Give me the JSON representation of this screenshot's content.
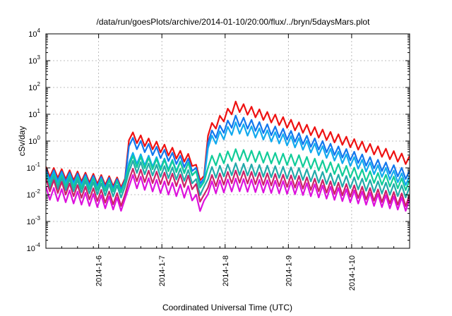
{
  "chart_data": {
    "type": "line",
    "title": "/data/run/goesPlots/archive/2014-01-10/20:00/flux/../bryn/5daysMars.plot",
    "xlabel": "Coordinated Universal Time (UTC)",
    "ylabel": "cSv/day",
    "yscale": "log",
    "ylim": [
      0.0001,
      10000
    ],
    "yticks": [
      {
        "base": "10",
        "exp": "-4"
      },
      {
        "base": "10",
        "exp": "-3"
      },
      {
        "base": "10",
        "exp": "-2"
      },
      {
        "base": "10",
        "exp": "-1"
      },
      {
        "base": "10",
        "exp": "0"
      },
      {
        "base": "10",
        "exp": "1"
      },
      {
        "base": "10",
        "exp": "2"
      },
      {
        "base": "10",
        "exp": "3"
      },
      {
        "base": "10",
        "exp": "4"
      }
    ],
    "xlim": [
      "2014-01-05T04:00",
      "2014-01-10T22:00"
    ],
    "xticks": [
      "2014-1-6",
      "2014-1-7",
      "2014-1-8",
      "2014-1-9",
      "2014-1-10"
    ],
    "grid": true,
    "legend": "none",
    "series": [
      {
        "color": "#ee1111",
        "profile": [
          [
            0,
            0.11
          ],
          [
            1.25,
            0.04
          ],
          [
            1.28,
            2.6
          ],
          [
            2.3,
            0.3
          ],
          [
            2.4,
            0.1
          ],
          [
            2.5,
            0.05
          ],
          [
            2.53,
            3.0
          ],
          [
            3.0,
            30
          ],
          [
            4.0,
            5
          ],
          [
            5.75,
            0.28
          ]
        ]
      },
      {
        "color": "#1177ee",
        "profile": [
          [
            0,
            0.09
          ],
          [
            1.25,
            0.035
          ],
          [
            1.28,
            1.6
          ],
          [
            2.3,
            0.2
          ],
          [
            2.4,
            0.08
          ],
          [
            2.5,
            0.04
          ],
          [
            2.53,
            1.8
          ],
          [
            3.0,
            9
          ],
          [
            4.0,
            2
          ],
          [
            5.75,
            0.08
          ]
        ]
      },
      {
        "color": "#11aaee",
        "profile": [
          [
            0,
            0.08
          ],
          [
            1.25,
            0.03
          ],
          [
            1.28,
            0.4
          ],
          [
            2.3,
            0.15
          ],
          [
            2.4,
            0.06
          ],
          [
            2.5,
            0.035
          ],
          [
            2.53,
            1.2
          ],
          [
            3.0,
            5
          ],
          [
            4.0,
            1.3
          ],
          [
            5.75,
            0.05
          ]
        ]
      },
      {
        "color": "#11cc99",
        "profile": [
          [
            0,
            0.06
          ],
          [
            1.25,
            0.03
          ],
          [
            1.28,
            0.3
          ],
          [
            2.3,
            0.15
          ],
          [
            2.4,
            0.06
          ],
          [
            2.5,
            0.03
          ],
          [
            2.53,
            0.25
          ],
          [
            3.0,
            0.5
          ],
          [
            4.0,
            0.3
          ],
          [
            5.75,
            0.035
          ]
        ]
      },
      {
        "color": "#22aaaa",
        "profile": [
          [
            0,
            0.05
          ],
          [
            1.25,
            0.02
          ],
          [
            1.28,
            0.2
          ],
          [
            2.3,
            0.08
          ],
          [
            2.4,
            0.03
          ],
          [
            2.5,
            0.02
          ],
          [
            2.53,
            0.1
          ],
          [
            3.0,
            0.15
          ],
          [
            4.0,
            0.1
          ],
          [
            5.75,
            0.02
          ]
        ]
      },
      {
        "color": "#cc2266",
        "profile": [
          [
            0,
            0.04
          ],
          [
            1.25,
            0.01
          ],
          [
            1.28,
            0.1
          ],
          [
            2.3,
            0.05
          ],
          [
            2.4,
            0.02
          ],
          [
            2.5,
            0.01
          ],
          [
            2.53,
            0.05
          ],
          [
            3.0,
            0.08
          ],
          [
            4.0,
            0.05
          ],
          [
            5.75,
            0.01
          ]
        ]
      },
      {
        "color": "#dd11dd",
        "profile": [
          [
            0,
            0.02
          ],
          [
            1.25,
            0.007
          ],
          [
            1.28,
            0.06
          ],
          [
            2.3,
            0.02
          ],
          [
            2.4,
            0.008
          ],
          [
            2.5,
            0.006
          ],
          [
            2.53,
            0.03
          ],
          [
            3.0,
            0.04
          ],
          [
            4.0,
            0.03
          ],
          [
            5.75,
            0.007
          ]
        ]
      }
    ]
  }
}
